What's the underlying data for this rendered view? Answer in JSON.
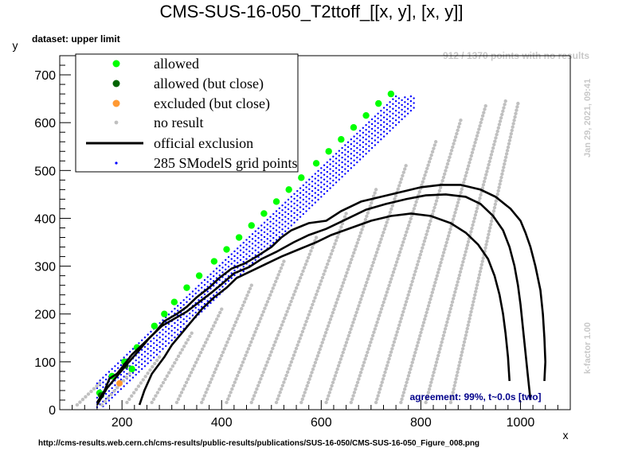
{
  "title": "CMS-SUS-16-050_T2ttoff_[[x, y], [x, y]]",
  "dataset_label": "dataset: upper limit",
  "no_result_count_text": "912 / 1370 points with no results",
  "timestamp": "Jan 29, 2021, 09:41",
  "kfactor": "k-factor 1.00",
  "agreement": "agreement: 99%, t~0.0s [two]",
  "source_url": "http://cms-results.web.cern.ch/cms-results/public-results/publications/SUS-16-050/CMS-SUS-16-050_Figure_008.png",
  "colors": {
    "allowed": "#00ff00",
    "allowed_close": "#006400",
    "excluded_close": "#ff9933",
    "no_result": "#c0c0c0",
    "grid_points": "#0000ff",
    "exclusion": "#000000",
    "agreement_text": "#00008b",
    "side_text": "#c8c8c8"
  },
  "chart_data": {
    "type": "scatter",
    "title": "CMS-SUS-16-050_T2ttoff_[[x, y], [x, y]]",
    "xlabel": "x",
    "ylabel": "y",
    "xlim": [
      75,
      1100
    ],
    "ylim": [
      0,
      740
    ],
    "xticks": [
      200,
      400,
      600,
      800,
      1000
    ],
    "yticks": [
      0,
      100,
      200,
      300,
      400,
      500,
      600,
      700
    ],
    "legend": {
      "position": "top-left",
      "entries": [
        {
          "key": "allowed",
          "label": "allowed"
        },
        {
          "key": "allowed_close",
          "label": "allowed (but close)"
        },
        {
          "key": "excluded_close",
          "label": "excluded (but close)"
        },
        {
          "key": "no_result",
          "label": "no result"
        },
        {
          "key": "exclusion",
          "label": "official exclusion"
        },
        {
          "key": "grid_points",
          "label": "285 SModelS grid points"
        }
      ]
    },
    "series": [
      {
        "name": "allowed",
        "points": [
          [
            155,
            35
          ],
          [
            180,
            70
          ],
          [
            205,
            100
          ],
          [
            220,
            85
          ],
          [
            230,
            130
          ],
          [
            265,
            175
          ],
          [
            285,
            200
          ],
          [
            305,
            225
          ],
          [
            330,
            255
          ],
          [
            355,
            280
          ],
          [
            385,
            310
          ],
          [
            410,
            335
          ],
          [
            435,
            360
          ],
          [
            460,
            385
          ],
          [
            485,
            410
          ],
          [
            510,
            435
          ],
          [
            535,
            460
          ],
          [
            560,
            485
          ],
          [
            590,
            515
          ],
          [
            615,
            540
          ],
          [
            640,
            565
          ],
          [
            665,
            590
          ],
          [
            690,
            615
          ],
          [
            715,
            640
          ],
          [
            740,
            660
          ]
        ]
      },
      {
        "name": "allowed_close",
        "points": [
          [
            158,
            30
          ],
          [
            207,
            92
          ]
        ]
      },
      {
        "name": "excluded_close",
        "points": [
          [
            195,
            55
          ]
        ]
      },
      {
        "name": "grid_points",
        "band": {
          "x_start": 150,
          "x_end": 790,
          "y_offset_low": 95,
          "y_offset_high": 155
        }
      },
      {
        "name": "no_result",
        "stripes": [
          {
            "x0": 110,
            "y0": 10,
            "x1": 155,
            "y1": 55
          },
          {
            "x0": 160,
            "y0": 10,
            "x1": 215,
            "y1": 75
          },
          {
            "x0": 210,
            "y0": 15,
            "x1": 275,
            "y1": 110
          },
          {
            "x0": 260,
            "y0": 15,
            "x1": 340,
            "y1": 160
          },
          {
            "x0": 310,
            "y0": 15,
            "x1": 400,
            "y1": 210
          },
          {
            "x0": 360,
            "y0": 15,
            "x1": 460,
            "y1": 260
          },
          {
            "x0": 410,
            "y0": 15,
            "x1": 525,
            "y1": 310
          },
          {
            "x0": 460,
            "y0": 15,
            "x1": 590,
            "y1": 360
          },
          {
            "x0": 510,
            "y0": 15,
            "x1": 650,
            "y1": 410
          },
          {
            "x0": 560,
            "y0": 15,
            "x1": 710,
            "y1": 460
          },
          {
            "x0": 610,
            "y0": 15,
            "x1": 770,
            "y1": 510
          },
          {
            "x0": 660,
            "y0": 15,
            "x1": 830,
            "y1": 560
          },
          {
            "x0": 710,
            "y0": 15,
            "x1": 880,
            "y1": 605
          },
          {
            "x0": 760,
            "y0": 15,
            "x1": 930,
            "y1": 635
          },
          {
            "x0": 810,
            "y0": 15,
            "x1": 970,
            "y1": 645
          },
          {
            "x0": 860,
            "y0": 15,
            "x1": 995,
            "y1": 640
          }
        ]
      },
      {
        "name": "official_exclusion",
        "lines": [
          [
            [
              150,
              15
            ],
            [
              165,
              40
            ],
            [
              175,
              65
            ],
            [
              190,
              75
            ],
            [
              205,
              95
            ],
            [
              220,
              115
            ],
            [
              240,
              135
            ],
            [
              265,
              160
            ],
            [
              285,
              185
            ],
            [
              310,
              200
            ],
            [
              330,
              215
            ],
            [
              350,
              235
            ],
            [
              375,
              255
            ],
            [
              395,
              275
            ],
            [
              420,
              295
            ],
            [
              445,
              305
            ],
            [
              470,
              320
            ],
            [
              500,
              340
            ],
            [
              520,
              360
            ],
            [
              540,
              375
            ],
            [
              575,
              390
            ],
            [
              610,
              395
            ],
            [
              640,
              415
            ],
            [
              680,
              435
            ],
            [
              720,
              445
            ],
            [
              760,
              455
            ],
            [
              800,
              465
            ],
            [
              840,
              470
            ],
            [
              880,
              470
            ],
            [
              920,
              460
            ],
            [
              950,
              445
            ],
            [
              980,
              420
            ],
            [
              1000,
              395
            ],
            [
              1010,
              370
            ],
            [
              1020,
              340
            ],
            [
              1030,
              300
            ],
            [
              1040,
              250
            ],
            [
              1045,
              200
            ],
            [
              1048,
              150
            ],
            [
              1050,
              100
            ],
            [
              1048,
              60
            ]
          ],
          [
            [
              150,
              10
            ],
            [
              170,
              45
            ],
            [
              190,
              70
            ],
            [
              210,
              95
            ],
            [
              235,
              125
            ],
            [
              255,
              150
            ],
            [
              280,
              175
            ],
            [
              305,
              190
            ],
            [
              330,
              205
            ],
            [
              355,
              225
            ],
            [
              380,
              245
            ],
            [
              400,
              262
            ],
            [
              425,
              285
            ],
            [
              455,
              298
            ],
            [
              480,
              315
            ],
            [
              510,
              330
            ],
            [
              545,
              350
            ],
            [
              575,
              365
            ],
            [
              610,
              378
            ],
            [
              650,
              398
            ],
            [
              690,
              418
            ],
            [
              730,
              430
            ],
            [
              770,
              440
            ],
            [
              810,
              448
            ],
            [
              850,
              450
            ],
            [
              890,
              445
            ],
            [
              920,
              430
            ],
            [
              945,
              405
            ],
            [
              965,
              375
            ],
            [
              978,
              340
            ],
            [
              988,
              300
            ],
            [
              995,
              260
            ],
            [
              1000,
              220
            ],
            [
              1005,
              170
            ],
            [
              1010,
              120
            ],
            [
              1015,
              70
            ],
            [
              1020,
              20
            ]
          ],
          [
            [
              235,
              10
            ],
            [
              245,
              40
            ],
            [
              260,
              75
            ],
            [
              285,
              110
            ],
            [
              300,
              135
            ],
            [
              320,
              160
            ],
            [
              340,
              185
            ],
            [
              360,
              210
            ],
            [
              385,
              235
            ],
            [
              410,
              255
            ],
            [
              430,
              275
            ],
            [
              460,
              290
            ],
            [
              490,
              305
            ],
            [
              520,
              320
            ],
            [
              555,
              335
            ],
            [
              590,
              350
            ],
            [
              620,
              365
            ],
            [
              660,
              380
            ],
            [
              700,
              395
            ],
            [
              740,
              405
            ],
            [
              780,
              410
            ],
            [
              820,
              405
            ],
            [
              860,
              390
            ],
            [
              890,
              370
            ],
            [
              915,
              345
            ],
            [
              935,
              315
            ],
            [
              948,
              280
            ],
            [
              958,
              240
            ],
            [
              965,
              200
            ],
            [
              970,
              160
            ],
            [
              975,
              110
            ],
            [
              978,
              60
            ]
          ]
        ]
      }
    ]
  }
}
